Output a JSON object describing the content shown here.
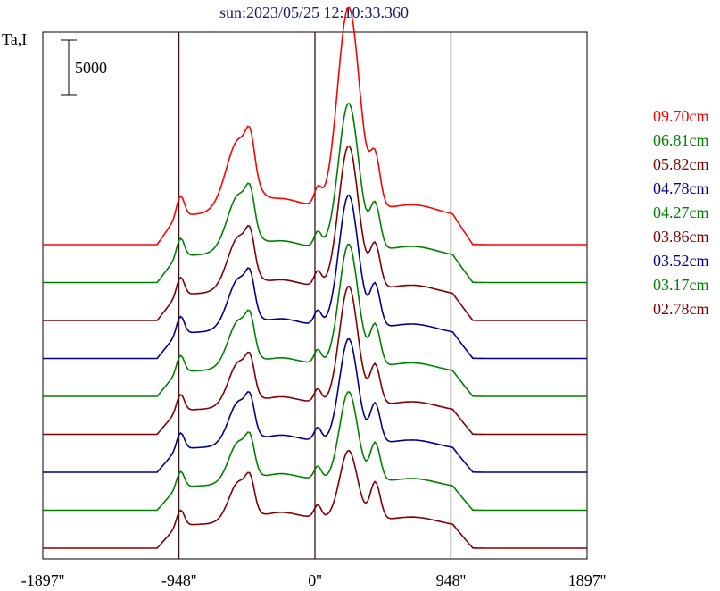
{
  "chart_data": {
    "type": "line",
    "title": "sun:2023/05/25 12:10:33.360",
    "ylabel": "Ta,I",
    "xlim": [
      -1897,
      1897
    ],
    "x_ticks": [
      {
        "value": -1897,
        "label": "-1897''"
      },
      {
        "value": -948,
        "label": "-948''"
      },
      {
        "value": 0,
        "label": "0''"
      },
      {
        "value": 948,
        "label": "948''"
      },
      {
        "value": 1897,
        "label": "1897''"
      }
    ],
    "vlines": [
      -948,
      0,
      948
    ],
    "scale_bar": {
      "value": 5000,
      "label": "5000"
    },
    "series": [
      {
        "name": "09.70cm",
        "color": "#ff0000",
        "offset": 0,
        "amp": 1.25,
        "w": 0.7
      },
      {
        "name": "06.81cm",
        "color": "#008000",
        "offset": 1,
        "amp": 1.0,
        "w": 0.5
      },
      {
        "name": "05.82cm",
        "color": "#800000",
        "offset": 2,
        "amp": 1.0,
        "w": 0.45
      },
      {
        "name": "04.78cm",
        "color": "#00008b",
        "offset": 3,
        "amp": 0.95,
        "w": 0.4
      },
      {
        "name": "04.27cm",
        "color": "#008000",
        "offset": 4,
        "amp": 0.9,
        "w": 0.35
      },
      {
        "name": "03.86cm",
        "color": "#800000",
        "offset": 5,
        "amp": 0.9,
        "w": 0.3
      },
      {
        "name": "03.52cm",
        "color": "#00008b",
        "offset": 6,
        "amp": 0.8,
        "w": 0.28
      },
      {
        "name": "03.17cm",
        "color": "#008000",
        "offset": 7,
        "amp": 0.7,
        "w": 0.25
      },
      {
        "name": "02.78cm",
        "color": "#800000",
        "offset": 8,
        "amp": 0.55,
        "w": 0.22
      }
    ]
  }
}
